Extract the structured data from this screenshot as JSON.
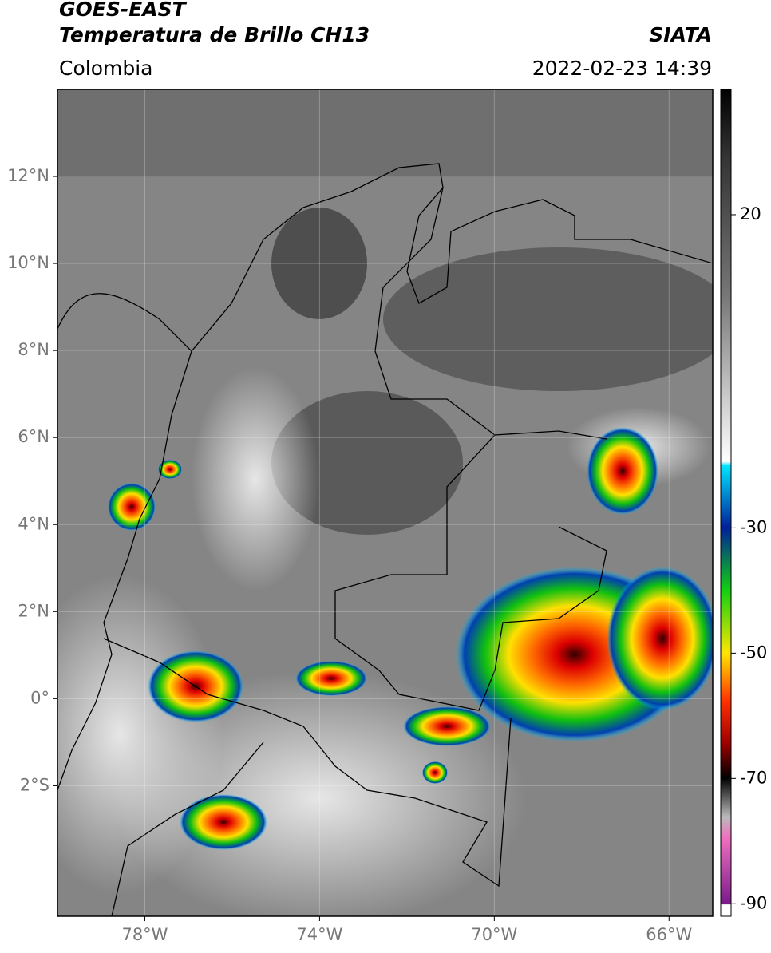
{
  "header": {
    "title": "GOES-EAST",
    "subtitle": "Temperatura de Brillo CH13",
    "source": "SIATA",
    "region": "Colombia",
    "timestamp": "2022-02-23 14:39"
  },
  "map": {
    "lon_range": [
      -80,
      -65
    ],
    "lat_range": [
      -5,
      14
    ],
    "lat_ticks": [
      {
        "value": 12,
        "label": "12°N"
      },
      {
        "value": 10,
        "label": "10°N"
      },
      {
        "value": 8,
        "label": "8°N"
      },
      {
        "value": 6,
        "label": "6°N"
      },
      {
        "value": 4,
        "label": "4°N"
      },
      {
        "value": 2,
        "label": "2°N"
      },
      {
        "value": 0,
        "label": "0°"
      },
      {
        "value": -2,
        "label": "2°S"
      }
    ],
    "lon_ticks": [
      {
        "value": -78,
        "label": "78°W"
      },
      {
        "value": -74,
        "label": "74°W"
      },
      {
        "value": -70,
        "label": "70°W"
      },
      {
        "value": -66,
        "label": "66°W"
      }
    ]
  },
  "colorbar": {
    "range": [
      -92,
      40
    ],
    "ticks": [
      20,
      -30,
      -50,
      -70,
      -90
    ]
  }
}
